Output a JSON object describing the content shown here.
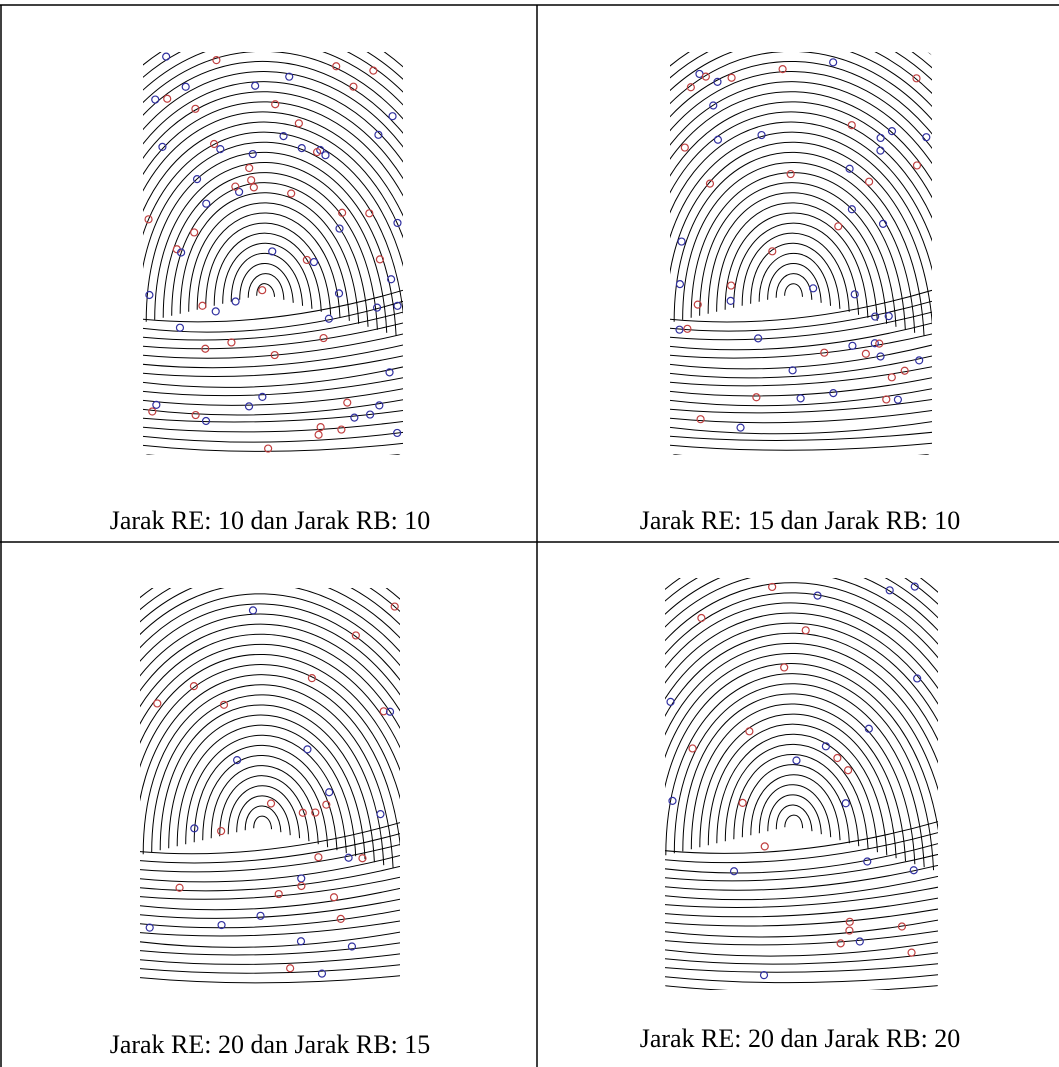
{
  "table": {
    "rows": [
      [
        "Jarak RE: 10 dan Jarak RB: 10",
        "Jarak RE: 15 dan Jarak RB: 10"
      ],
      [
        "Jarak RE: 20 dan Jarak RB: 15",
        "Jarak RE: 20 dan Jarak RB: 20"
      ]
    ]
  }
}
